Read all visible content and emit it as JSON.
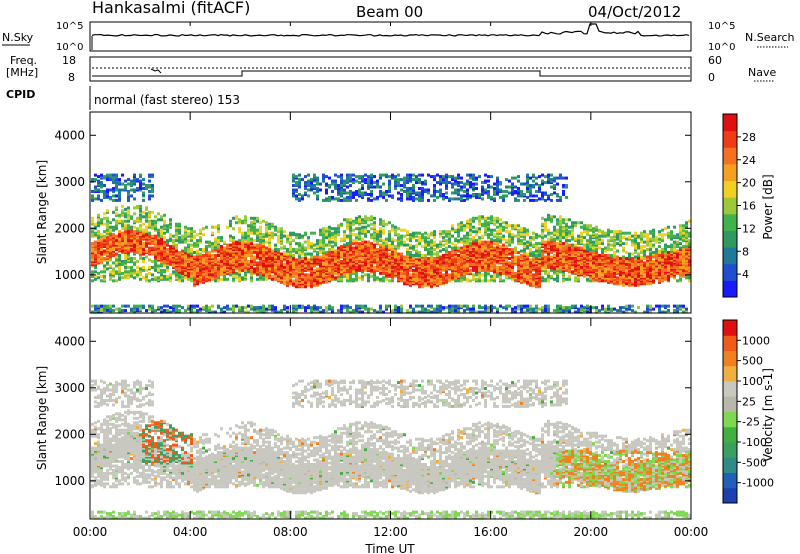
{
  "header": {
    "station": "Hankasalmi (fitACF)",
    "beam": "Beam 00",
    "date": "04/Oct/2012"
  },
  "noise_panel": {
    "left_label": "N.Sky",
    "right_label": "N.Search",
    "ticks_left": [
      "10^5",
      "10^0"
    ],
    "ticks_right": [
      "10^5",
      "10^0"
    ]
  },
  "freq_panel": {
    "left_label_1": "Freq.",
    "left_label_2": "[MHz]",
    "left_ticks": [
      "18",
      "8"
    ],
    "right_label": "Nave",
    "right_ticks": [
      "60",
      "0"
    ]
  },
  "cpid": {
    "label": "CPID",
    "value": "normal (fast stereo) 153"
  },
  "xaxis": {
    "title": "Time UT",
    "ticks": [
      "00:00",
      "04:00",
      "08:00",
      "12:00",
      "16:00",
      "20:00",
      "00:00"
    ]
  },
  "chart_data": [
    {
      "type": "heatmap",
      "title": "Power",
      "ylabel": "Slant Range [km]",
      "ylim": [
        180,
        4500
      ],
      "yticks": [
        1000,
        2000,
        3000,
        4000
      ],
      "colorbar": {
        "label": "Power [dB]",
        "ticks": [
          "28",
          "24",
          "20",
          "16",
          "12",
          "8",
          "4"
        ],
        "colors": [
          "#1a1aff",
          "#1f4fd0",
          "#1f7a9a",
          "#2f9a60",
          "#3fb34a",
          "#9cc83a",
          "#f0d020",
          "#f5a020",
          "#f57020",
          "#f03c14",
          "#e01010"
        ]
      }
    },
    {
      "type": "heatmap",
      "title": "Velocity",
      "ylabel": "Slant Range [km]",
      "ylim": [
        180,
        4500
      ],
      "yticks": [
        1000,
        2000,
        3000,
        4000
      ],
      "colorbar": {
        "label": "Velocity [m s-1]",
        "ticks": [
          "1000",
          "500",
          "100",
          "25",
          "-25",
          "-100",
          "-500",
          "-1000"
        ],
        "colors": [
          "#1d3fb0",
          "#2060b8",
          "#2f8a8a",
          "#3aa060",
          "#40b040",
          "#7ed850",
          "#b8b8a8",
          "#c8c8c0",
          "#f0b040",
          "#f08020",
          "#f05a1a",
          "#e01010"
        ]
      }
    }
  ]
}
